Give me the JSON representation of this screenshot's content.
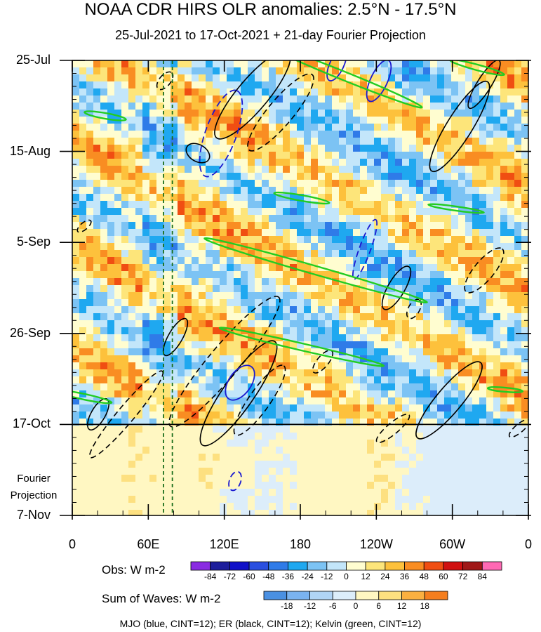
{
  "chart_data": {
    "type": "heatmap",
    "title": "NOAA CDR HIRS OLR anomalies: 2.5°N - 17.5°N",
    "subtitle": "25-Jul-2021 to 17-Oct-2021 + 21-day Fourier Projection",
    "y_ticks": [
      "25-Jul",
      "15-Aug",
      "5-Sep",
      "26-Sep",
      "17-Oct",
      "7-Nov"
    ],
    "y_note": "Fourier\nProjection",
    "x_ticks": [
      "0",
      "60E",
      "120E",
      "180",
      "120W",
      "60W",
      "0"
    ],
    "x_range": [
      0,
      360
    ],
    "y_range": [
      "2021-07-25",
      "2021-11-07"
    ],
    "observation_end": "2021-10-17",
    "reference_lines": {
      "horizontal_date": "2021-10-17",
      "vertical_dashed_longitudes": [
        72,
        79
      ]
    },
    "obs_colorbar": {
      "title": "Obs: W m-2",
      "labels": [
        "-84",
        "-72",
        "-60",
        "-48",
        "-36",
        "-24",
        "-12",
        "0",
        "12",
        "24",
        "36",
        "48",
        "60",
        "72",
        "84"
      ],
      "colors": [
        "#8a2be2",
        "#1e1e9c",
        "#1010c8",
        "#2a4fe0",
        "#2f7be8",
        "#1fa8f0",
        "#7cc3f4",
        "#c3e6fa",
        "#fffdd0",
        "#fde57a",
        "#fdc13c",
        "#f98d22",
        "#f04e12",
        "#d01010",
        "#a01818",
        "#ff69b4"
      ]
    },
    "waves_colorbar": {
      "title": "Sum of Waves: W m-2",
      "labels": [
        "-18",
        "-12",
        "-6",
        "0",
        "6",
        "12",
        "18"
      ],
      "colors": [
        "#4a90e2",
        "#7ab3f0",
        "#b0d4f5",
        "#dcedfa",
        "#fff7c2",
        "#fde080",
        "#fbb040",
        "#f57e1e"
      ]
    },
    "contours_legend": "MJO (blue, CINT=12); ER (black, CINT=12); Kelvin (green, CINT=12)",
    "series": [
      {
        "name": "MJO",
        "color": "#1a1ad0",
        "cint": 12
      },
      {
        "name": "ER",
        "color": "#000000",
        "cint": 12
      },
      {
        "name": "Kelvin",
        "color": "#22cc22",
        "cint": 12
      }
    ]
  }
}
